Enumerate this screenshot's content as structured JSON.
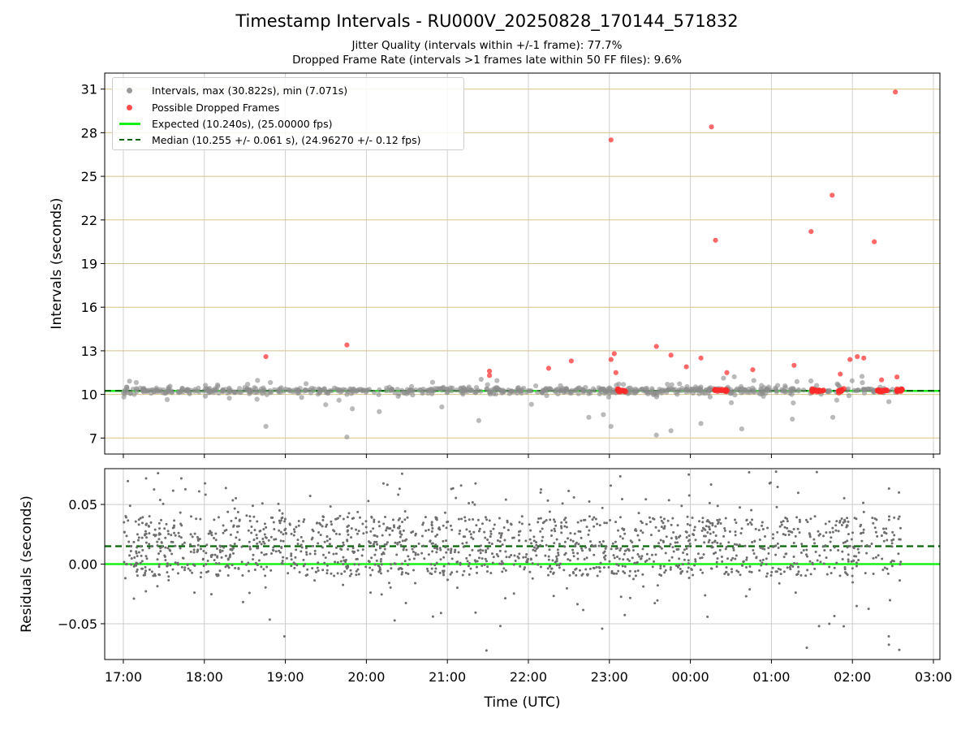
{
  "title": "Timestamp Intervals - RU000V_20250828_170144_571832",
  "subtitle_1": "Jitter Quality (intervals within +/-1 frame): 77.7%",
  "subtitle_2": "Dropped Frame Rate (intervals >1 frames late within 50 FF files): 9.6%",
  "colors": {
    "intervals": "#8c8c8c",
    "dropped": "#ff2a2a",
    "expected": "#18f018",
    "median": "#006400",
    "residuals": "#6e6e6e",
    "grid_top": "#d7c38a",
    "grid_bottom": "#cccccc"
  },
  "chart_data": [
    {
      "type": "scatter",
      "panel": "top",
      "ylabel": "Intervals (seconds)",
      "xlabel": "",
      "x_units": "hours since 17:00 UTC (axis shows clock time)",
      "xlim": [
        -0.23,
        10.08
      ],
      "ylim": [
        5.9,
        32.1
      ],
      "yticks": [
        7,
        10,
        13,
        16,
        19,
        22,
        25,
        28,
        31
      ],
      "grid": true,
      "legend_position": "upper-left",
      "legend": [
        "Intervals, max (30.822s), min (7.071s)",
        "Possible Dropped Frames",
        "Expected (10.240s), (25.00000 fps)",
        "Median (10.255 +/- 0.061 s), (24.96270 +/- 0.12 fps)"
      ],
      "expected_value": 10.24,
      "median_value": 10.255,
      "series": [
        {
          "name": "Possible Dropped Frames",
          "points": [
            [
              1.76,
              12.6
            ],
            [
              2.76,
              13.4
            ],
            [
              4.52,
              11.6
            ],
            [
              4.52,
              11.3
            ],
            [
              5.25,
              11.8
            ],
            [
              5.53,
              12.3
            ],
            [
              6.02,
              27.5
            ],
            [
              6.02,
              12.4
            ],
            [
              6.06,
              12.8
            ],
            [
              6.08,
              11.5
            ],
            [
              6.58,
              13.3
            ],
            [
              6.76,
              12.7
            ],
            [
              6.95,
              11.9
            ],
            [
              7.13,
              12.5
            ],
            [
              7.26,
              28.4
            ],
            [
              7.31,
              20.6
            ],
            [
              7.45,
              11.5
            ],
            [
              7.77,
              11.7
            ],
            [
              8.28,
              12.0
            ],
            [
              8.49,
              21.2
            ],
            [
              8.75,
              23.7
            ],
            [
              8.85,
              11.4
            ],
            [
              8.97,
              12.4
            ],
            [
              9.06,
              12.6
            ],
            [
              9.14,
              12.5
            ],
            [
              9.27,
              20.5
            ],
            [
              9.36,
              11.0
            ],
            [
              9.53,
              30.8
            ],
            [
              9.55,
              11.2
            ]
          ]
        }
      ]
    },
    {
      "type": "scatter",
      "panel": "bottom",
      "ylabel": "Residuals (seconds)",
      "xlabel": "Time (UTC)",
      "xlim": [
        -0.23,
        10.08
      ],
      "ylim": [
        -0.08,
        0.08
      ],
      "yticks": [
        -0.05,
        0.0,
        0.05
      ],
      "ytick_labels": [
        "−0.05",
        "0.00",
        "0.05"
      ],
      "xticks": [
        0,
        1,
        2,
        3,
        4,
        5,
        6,
        7,
        8,
        9,
        10
      ],
      "xtick_labels": [
        "17:00",
        "18:00",
        "19:00",
        "20:00",
        "21:00",
        "22:00",
        "23:00",
        "00:00",
        "01:00",
        "02:00",
        "03:00"
      ],
      "expected_value": 0.0,
      "median_value": 0.015,
      "data_range_x": [
        0.0,
        9.6
      ],
      "residual_band": [
        -0.01,
        0.04
      ],
      "grid": true
    }
  ]
}
